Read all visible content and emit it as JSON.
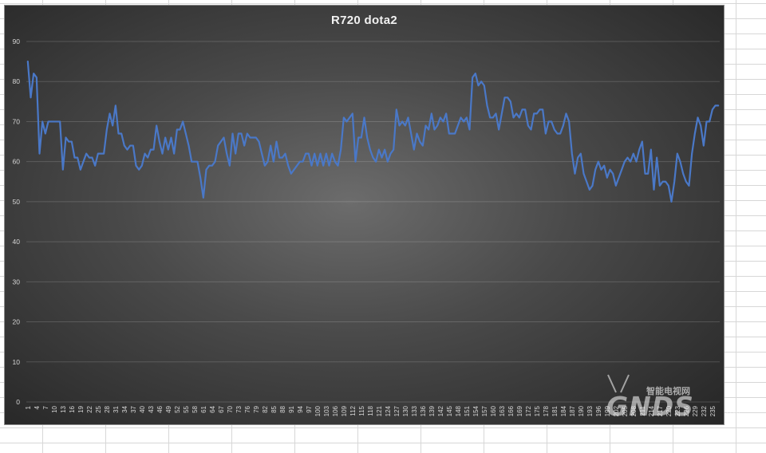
{
  "chart_data": {
    "type": "line",
    "title": "R720 dota2",
    "xlabel": "",
    "ylabel": "",
    "ylim": [
      0,
      90
    ],
    "y_ticks": [
      0,
      10,
      20,
      30,
      40,
      50,
      60,
      70,
      80,
      90
    ],
    "grid": true,
    "legend": "none",
    "x_tick_labels": [
      "1",
      "4",
      "7",
      "10",
      "13",
      "16",
      "19",
      "22",
      "25",
      "28",
      "31",
      "34",
      "37",
      "40",
      "43",
      "46",
      "49",
      "52",
      "55",
      "58",
      "61",
      "64",
      "67",
      "70",
      "73",
      "76",
      "79",
      "82",
      "85",
      "88",
      "91",
      "94",
      "97",
      "100",
      "103",
      "106",
      "109",
      "112",
      "115",
      "118",
      "121",
      "124",
      "127",
      "130",
      "133",
      "136",
      "139",
      "142",
      "145",
      "148",
      "151",
      "154",
      "157",
      "160",
      "163",
      "166",
      "169",
      "172",
      "175",
      "178",
      "181",
      "184",
      "187",
      "190",
      "193",
      "196",
      "199",
      "202",
      "205",
      "208",
      "211",
      "214",
      "217",
      "220",
      "223",
      "226",
      "229",
      "232",
      "235"
    ],
    "x": [
      1,
      2,
      3,
      4,
      5,
      6,
      7,
      8,
      9,
      10,
      11,
      12,
      13,
      14,
      15,
      16,
      17,
      18,
      19,
      20,
      21,
      22,
      23,
      24,
      25,
      26,
      27,
      28,
      29,
      30,
      31,
      32,
      33,
      34,
      35,
      36,
      37,
      38,
      39,
      40,
      41,
      42,
      43,
      44,
      45,
      46,
      47,
      48,
      49,
      50,
      51,
      52,
      53,
      54,
      55,
      56,
      57,
      58,
      59,
      60,
      61,
      62,
      63,
      64,
      65,
      66,
      67,
      68,
      69,
      70,
      71,
      72,
      73,
      74,
      75,
      76,
      77,
      78,
      79,
      80,
      81,
      82,
      83,
      84,
      85,
      86,
      87,
      88,
      89,
      90,
      91,
      92,
      93,
      94,
      95,
      96,
      97,
      98,
      99,
      100,
      101,
      102,
      103,
      104,
      105,
      106,
      107,
      108,
      109,
      110,
      111,
      112,
      113,
      114,
      115,
      116,
      117,
      118,
      119,
      120,
      121,
      122,
      123,
      124,
      125,
      126,
      127,
      128,
      129,
      130,
      131,
      132,
      133,
      134,
      135,
      136,
      137,
      138,
      139,
      140,
      141,
      142,
      143,
      144,
      145,
      146,
      147,
      148,
      149,
      150,
      151,
      152,
      153,
      154,
      155,
      156,
      157,
      158,
      159,
      160,
      161,
      162,
      163,
      164,
      165,
      166,
      167,
      168,
      169,
      170,
      171,
      172,
      173,
      174,
      175,
      176,
      177,
      178,
      179,
      180,
      181,
      182,
      183,
      184,
      185,
      186,
      187,
      188,
      189,
      190,
      191,
      192,
      193,
      194,
      195,
      196,
      197,
      198,
      199,
      200,
      201,
      202,
      203,
      204,
      205,
      206,
      207,
      208,
      209,
      210,
      211,
      212,
      213,
      214,
      215,
      216,
      217,
      218,
      219,
      220,
      221,
      222,
      223,
      224,
      225,
      226,
      227,
      228,
      229,
      230,
      231,
      232,
      233,
      234,
      235,
      236,
      237
    ],
    "series": [
      {
        "color": "#4a78c7",
        "values": [
          85,
          76,
          82,
          81,
          62,
          70,
          67,
          70,
          70,
          70,
          70,
          70,
          58,
          66,
          65,
          65,
          61,
          61,
          58,
          60,
          62,
          61,
          61,
          59,
          62,
          62,
          62,
          68,
          72,
          69,
          74,
          67,
          67,
          64,
          63,
          64,
          64,
          59,
          58,
          59,
          62,
          61,
          63,
          63,
          69,
          65,
          62,
          66,
          63,
          66,
          62,
          68,
          68,
          70,
          67,
          64,
          60,
          60,
          60,
          56,
          51,
          58,
          59,
          59,
          60,
          64,
          65,
          66,
          62,
          59,
          67,
          62,
          67,
          67,
          64,
          67,
          66,
          66,
          66,
          65,
          62,
          59,
          60,
          64,
          60,
          65,
          61,
          61,
          62,
          59,
          57,
          58,
          59,
          60,
          60,
          62,
          62,
          59,
          62,
          59,
          62,
          59,
          62,
          59,
          62,
          60,
          59,
          63,
          71,
          70,
          71,
          72,
          60,
          66,
          66,
          71,
          66,
          63,
          61,
          60,
          63,
          61,
          63,
          60,
          62,
          63,
          73,
          69,
          70,
          69,
          71,
          67,
          63,
          67,
          65,
          64,
          69,
          68,
          72,
          68,
          69,
          71,
          70,
          72,
          67,
          67,
          67,
          69,
          71,
          70,
          71,
          68,
          81,
          82,
          79,
          80,
          79,
          74,
          71,
          71,
          72,
          68,
          72,
          76,
          76,
          75,
          71,
          72,
          71,
          73,
          73,
          69,
          68,
          72,
          72,
          73,
          73,
          67,
          70,
          70,
          68,
          67,
          67,
          69,
          72,
          70,
          62,
          57,
          61,
          62,
          57,
          55,
          53,
          54,
          58,
          60,
          58,
          59,
          56,
          58,
          57,
          54,
          56,
          58,
          60,
          61,
          60,
          62,
          60,
          63,
          65,
          57,
          57,
          63,
          53,
          61,
          54,
          55,
          55,
          54,
          50,
          55,
          62,
          60,
          57,
          55,
          54,
          62,
          67,
          71,
          69,
          64,
          70,
          70,
          73,
          74,
          74
        ]
      }
    ]
  },
  "watermark": {
    "logo": "GNDS",
    "subtitle": "智能电视网",
    "suffix": ".com"
  }
}
